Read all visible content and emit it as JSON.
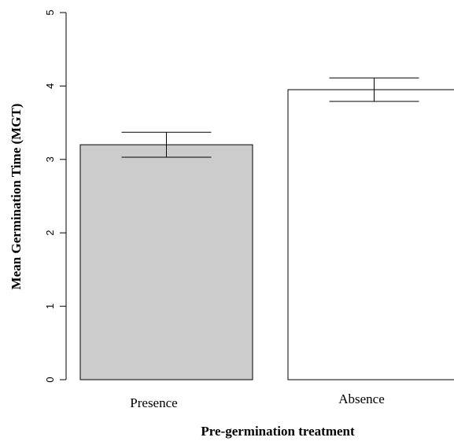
{
  "chart_data": {
    "type": "bar",
    "categories": [
      "Presence",
      "Absence"
    ],
    "values": [
      3.2,
      3.95
    ],
    "error": [
      0.17,
      0.16
    ],
    "bar_colors": [
      "#cccccc",
      "#ffffff"
    ],
    "xlabel": "Pre-germination treatment",
    "ylabel": "Mean Germination Time (MGT)",
    "ylim": [
      0,
      5
    ],
    "yticks": [
      0,
      1,
      2,
      3,
      4,
      5
    ],
    "grid": false
  }
}
